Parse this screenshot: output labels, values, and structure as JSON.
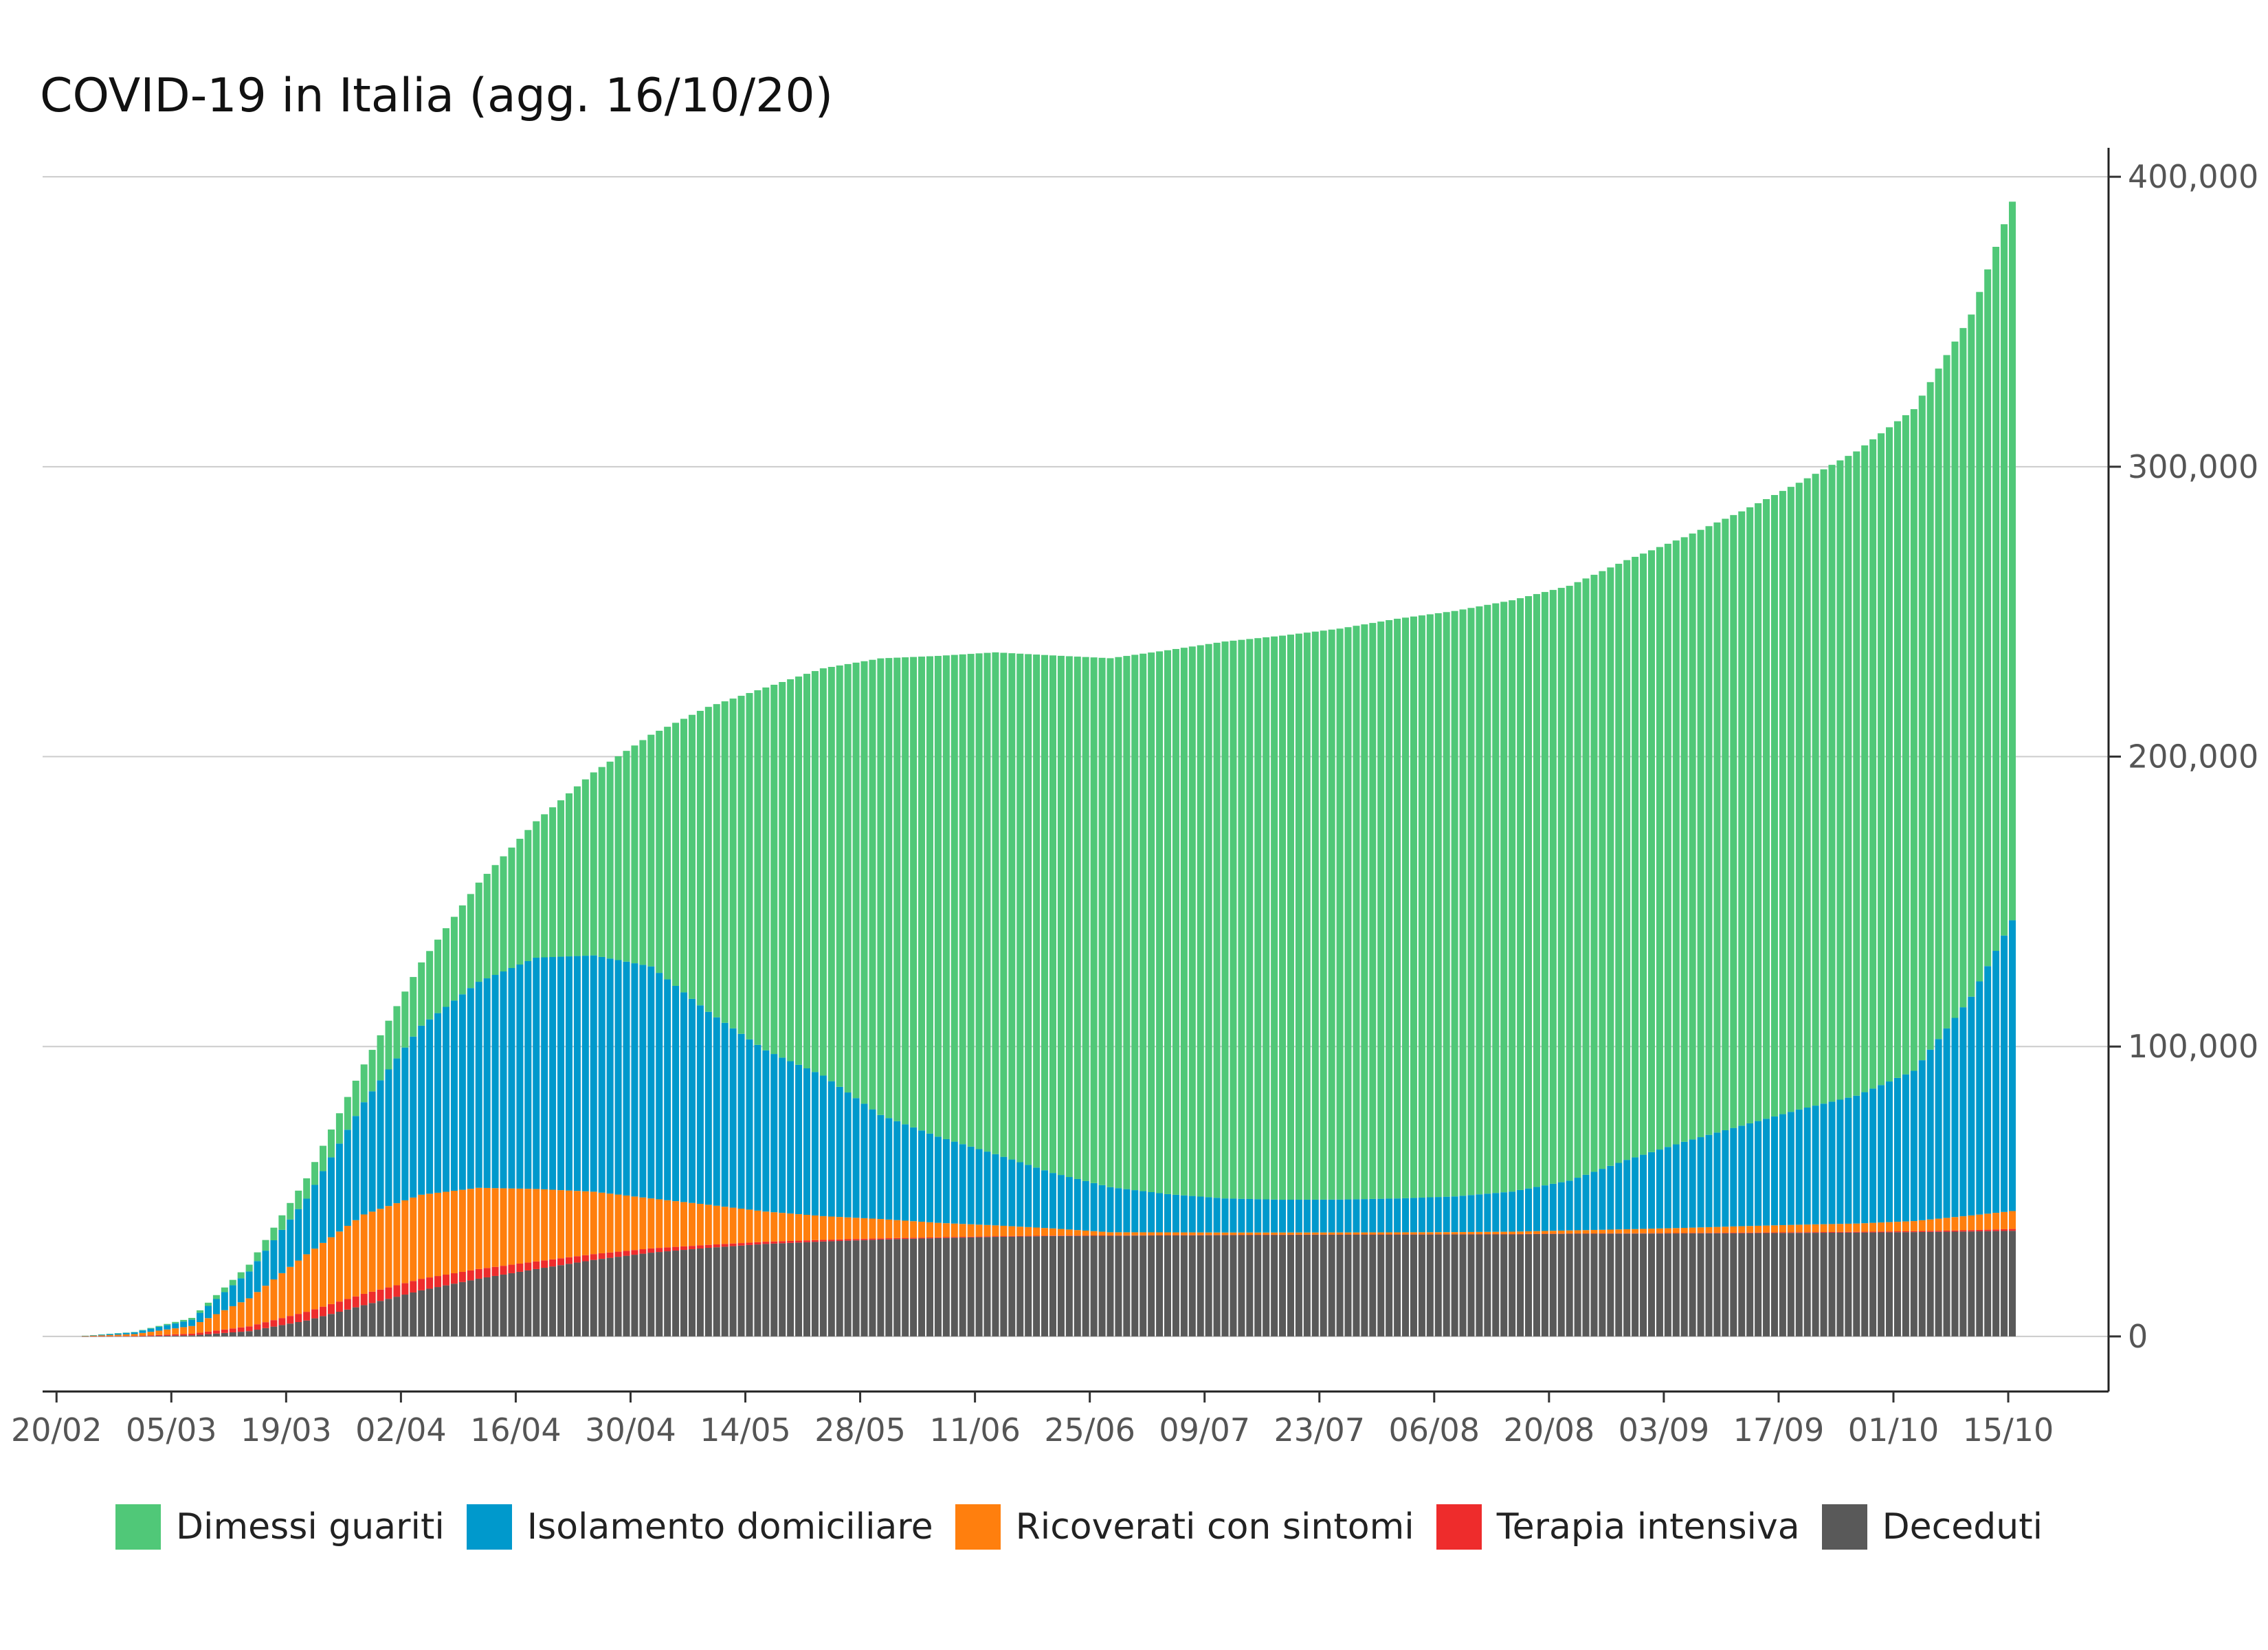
{
  "chart_data": {
    "type": "bar",
    "stacked": true,
    "title": "COVID-19 in Italia (agg. 16/10/20)",
    "xlabel": "",
    "ylabel": "",
    "x_tick_labels": [
      "20/02",
      "05/03",
      "19/03",
      "02/04",
      "16/04",
      "30/04",
      "14/05",
      "28/05",
      "11/06",
      "25/06",
      "09/07",
      "23/07",
      "06/08",
      "20/08",
      "03/09",
      "17/09",
      "01/10",
      "15/10"
    ],
    "y_ticks": [
      0,
      100000,
      200000,
      300000,
      400000
    ],
    "y_tick_labels": [
      "0",
      "100,000",
      "200,000",
      "300,000",
      "400,000"
    ],
    "ylim": [
      -19000,
      410000
    ],
    "y_axis_side": "right",
    "grid": "horizontal",
    "legend_position": "bottom",
    "start_date": "2020-02-24",
    "end_date": "2020-10-16",
    "series": [
      {
        "name": "Dimessi guariti",
        "color": "#50C878",
        "points": [
          [
            "2020-02-24",
            1
          ],
          [
            "2020-03-01",
            83
          ],
          [
            "2020-03-08",
            622
          ],
          [
            "2020-03-15",
            2335
          ],
          [
            "2020-03-22",
            7024
          ],
          [
            "2020-03-29",
            13030
          ],
          [
            "2020-04-05",
            21815
          ],
          [
            "2020-04-12",
            34211
          ],
          [
            "2020-04-19",
            47055
          ],
          [
            "2020-04-26",
            63120
          ],
          [
            "2020-05-03",
            79914
          ],
          [
            "2020-05-10",
            105186
          ],
          [
            "2020-05-17",
            125176
          ],
          [
            "2020-05-24",
            140479
          ],
          [
            "2020-05-31",
            157507
          ],
          [
            "2020-06-07",
            165837
          ],
          [
            "2020-06-14",
            173085
          ],
          [
            "2020-06-21",
            178526
          ],
          [
            "2020-06-28",
            182453
          ],
          [
            "2020-07-05",
            187615
          ],
          [
            "2020-07-12",
            192108
          ],
          [
            "2020-07-19",
            194579
          ],
          [
            "2020-07-26",
            196949
          ],
          [
            "2020-08-02",
            199974
          ],
          [
            "2020-08-09",
            201947
          ],
          [
            "2020-08-16",
            203968
          ],
          [
            "2020-08-23",
            205203
          ],
          [
            "2020-08-30",
            206902
          ],
          [
            "2020-09-06",
            208536
          ],
          [
            "2020-09-13",
            211885
          ],
          [
            "2020-09-20",
            216211
          ],
          [
            "2020-09-27",
            222241
          ],
          [
            "2020-10-04",
            228235
          ],
          [
            "2020-10-11",
            235303
          ],
          [
            "2020-10-16",
            247872
          ]
        ]
      },
      {
        "name": "Isolamento domiciliare",
        "color": "#0099CC",
        "points": [
          [
            "2020-02-24",
            94
          ],
          [
            "2020-03-01",
            639
          ],
          [
            "2020-03-08",
            2180
          ],
          [
            "2020-03-15",
            9268
          ],
          [
            "2020-03-22",
            19185
          ],
          [
            "2020-03-29",
            38720
          ],
          [
            "2020-04-05",
            58320
          ],
          [
            "2020-04-12",
            71063
          ],
          [
            "2020-04-19",
            79778
          ],
          [
            "2020-04-26",
            81510
          ],
          [
            "2020-05-03",
            80031
          ],
          [
            "2020-05-10",
            66553
          ],
          [
            "2020-05-17",
            55597
          ],
          [
            "2020-05-24",
            48485
          ],
          [
            "2020-05-31",
            35877
          ],
          [
            "2020-06-07",
            29718
          ],
          [
            "2020-06-14",
            24569
          ],
          [
            "2020-06-21",
            19120
          ],
          [
            "2020-06-28",
            15563
          ],
          [
            "2020-07-05",
            13179
          ],
          [
            "2020-07-12",
            11760
          ],
          [
            "2020-07-19",
            11311
          ],
          [
            "2020-07-26",
            11345
          ],
          [
            "2020-08-02",
            11689
          ],
          [
            "2020-08-09",
            12304
          ],
          [
            "2020-08-16",
            13831
          ],
          [
            "2020-08-23",
            17154
          ],
          [
            "2020-08-30",
            23920
          ],
          [
            "2020-09-06",
            29698
          ],
          [
            "2020-09-13",
            34689
          ],
          [
            "2020-09-20",
            39712
          ],
          [
            "2020-09-27",
            44098
          ],
          [
            "2020-10-04",
            51826
          ],
          [
            "2020-10-11",
            75457
          ],
          [
            "2020-10-16",
            100306
          ]
        ]
      },
      {
        "name": "Ricoverati con sintomi",
        "color": "#FF7F0E",
        "points": [
          [
            "2020-02-24",
            101
          ],
          [
            "2020-03-01",
            639
          ],
          [
            "2020-03-08",
            2651
          ],
          [
            "2020-03-15",
            9663
          ],
          [
            "2020-03-22",
            19846
          ],
          [
            "2020-03-29",
            27386
          ],
          [
            "2020-04-05",
            29010
          ],
          [
            "2020-04-12",
            28023
          ],
          [
            "2020-04-19",
            25007
          ],
          [
            "2020-04-26",
            21533
          ],
          [
            "2020-05-03",
            17242
          ],
          [
            "2020-05-10",
            13834
          ],
          [
            "2020-05-17",
            10400
          ],
          [
            "2020-05-24",
            8185
          ],
          [
            "2020-05-31",
            6680
          ],
          [
            "2020-06-07",
            5002
          ],
          [
            "2020-06-14",
            3747
          ],
          [
            "2020-06-21",
            2474
          ],
          [
            "2020-06-28",
            1090
          ],
          [
            "2020-07-05",
            956
          ],
          [
            "2020-07-12",
            820
          ],
          [
            "2020-07-19",
            749
          ],
          [
            "2020-07-26",
            713
          ],
          [
            "2020-08-02",
            705
          ],
          [
            "2020-08-09",
            732
          ],
          [
            "2020-08-16",
            843
          ],
          [
            "2020-08-23",
            1058
          ],
          [
            "2020-08-30",
            1380
          ],
          [
            "2020-09-06",
            1760
          ],
          [
            "2020-09-13",
            2222
          ],
          [
            "2020-09-20",
            2604
          ],
          [
            "2020-09-27",
            2846
          ],
          [
            "2020-10-04",
            3487
          ],
          [
            "2020-10-11",
            5076
          ],
          [
            "2020-10-16",
            6178
          ]
        ]
      },
      {
        "name": "Terapia intensiva",
        "color": "#EE2C2C",
        "points": [
          [
            "2020-02-24",
            26
          ],
          [
            "2020-03-01",
            140
          ],
          [
            "2020-03-08",
            567
          ],
          [
            "2020-03-15",
            1672
          ],
          [
            "2020-03-22",
            3009
          ],
          [
            "2020-03-29",
            3906
          ],
          [
            "2020-04-05",
            3977
          ],
          [
            "2020-04-12",
            3343
          ],
          [
            "2020-04-19",
            2635
          ],
          [
            "2020-04-26",
            2009
          ],
          [
            "2020-05-03",
            1479
          ],
          [
            "2020-05-10",
            1027
          ],
          [
            "2020-05-17",
            762
          ],
          [
            "2020-05-24",
            572
          ],
          [
            "2020-05-31",
            408
          ],
          [
            "2020-06-07",
            283
          ],
          [
            "2020-06-14",
            220
          ],
          [
            "2020-06-21",
            152
          ],
          [
            "2020-06-28",
            103
          ],
          [
            "2020-07-05",
            84
          ],
          [
            "2020-07-12",
            65
          ],
          [
            "2020-07-19",
            49
          ],
          [
            "2020-07-26",
            41
          ],
          [
            "2020-08-02",
            42
          ],
          [
            "2020-08-09",
            49
          ],
          [
            "2020-08-16",
            58
          ],
          [
            "2020-08-23",
            69
          ],
          [
            "2020-08-30",
            107
          ],
          [
            "2020-09-06",
            143
          ],
          [
            "2020-09-13",
            187
          ],
          [
            "2020-09-20",
            215
          ],
          [
            "2020-09-27",
            254
          ],
          [
            "2020-10-04",
            323
          ],
          [
            "2020-10-11",
            452
          ],
          [
            "2020-10-16",
            638
          ]
        ]
      },
      {
        "name": "Deceduti",
        "color": "#595959",
        "points": [
          [
            "2020-02-24",
            7
          ],
          [
            "2020-03-01",
            34
          ],
          [
            "2020-03-08",
            366
          ],
          [
            "2020-03-15",
            1809
          ],
          [
            "2020-03-22",
            5476
          ],
          [
            "2020-03-29",
            10779
          ],
          [
            "2020-04-05",
            15887
          ],
          [
            "2020-04-12",
            19899
          ],
          [
            "2020-04-19",
            23227
          ],
          [
            "2020-04-26",
            26384
          ],
          [
            "2020-05-03",
            28884
          ],
          [
            "2020-05-10",
            30560
          ],
          [
            "2020-05-17",
            31908
          ],
          [
            "2020-05-24",
            32735
          ],
          [
            "2020-05-31",
            33415
          ],
          [
            "2020-06-07",
            33899
          ],
          [
            "2020-06-14",
            34345
          ],
          [
            "2020-06-21",
            34634
          ],
          [
            "2020-06-28",
            34738
          ],
          [
            "2020-07-05",
            34861
          ],
          [
            "2020-07-12",
            34954
          ],
          [
            "2020-07-19",
            35045
          ],
          [
            "2020-07-26",
            35112
          ],
          [
            "2020-08-02",
            35154
          ],
          [
            "2020-08-09",
            35205
          ],
          [
            "2020-08-16",
            35231
          ],
          [
            "2020-08-23",
            35437
          ],
          [
            "2020-08-30",
            35477
          ],
          [
            "2020-09-06",
            35541
          ],
          [
            "2020-09-13",
            35610
          ],
          [
            "2020-09-20",
            35724
          ],
          [
            "2020-09-27",
            35835
          ],
          [
            "2020-10-04",
            35986
          ],
          [
            "2020-10-11",
            36205
          ],
          [
            "2020-10-16",
            36427
          ]
        ]
      }
    ]
  }
}
